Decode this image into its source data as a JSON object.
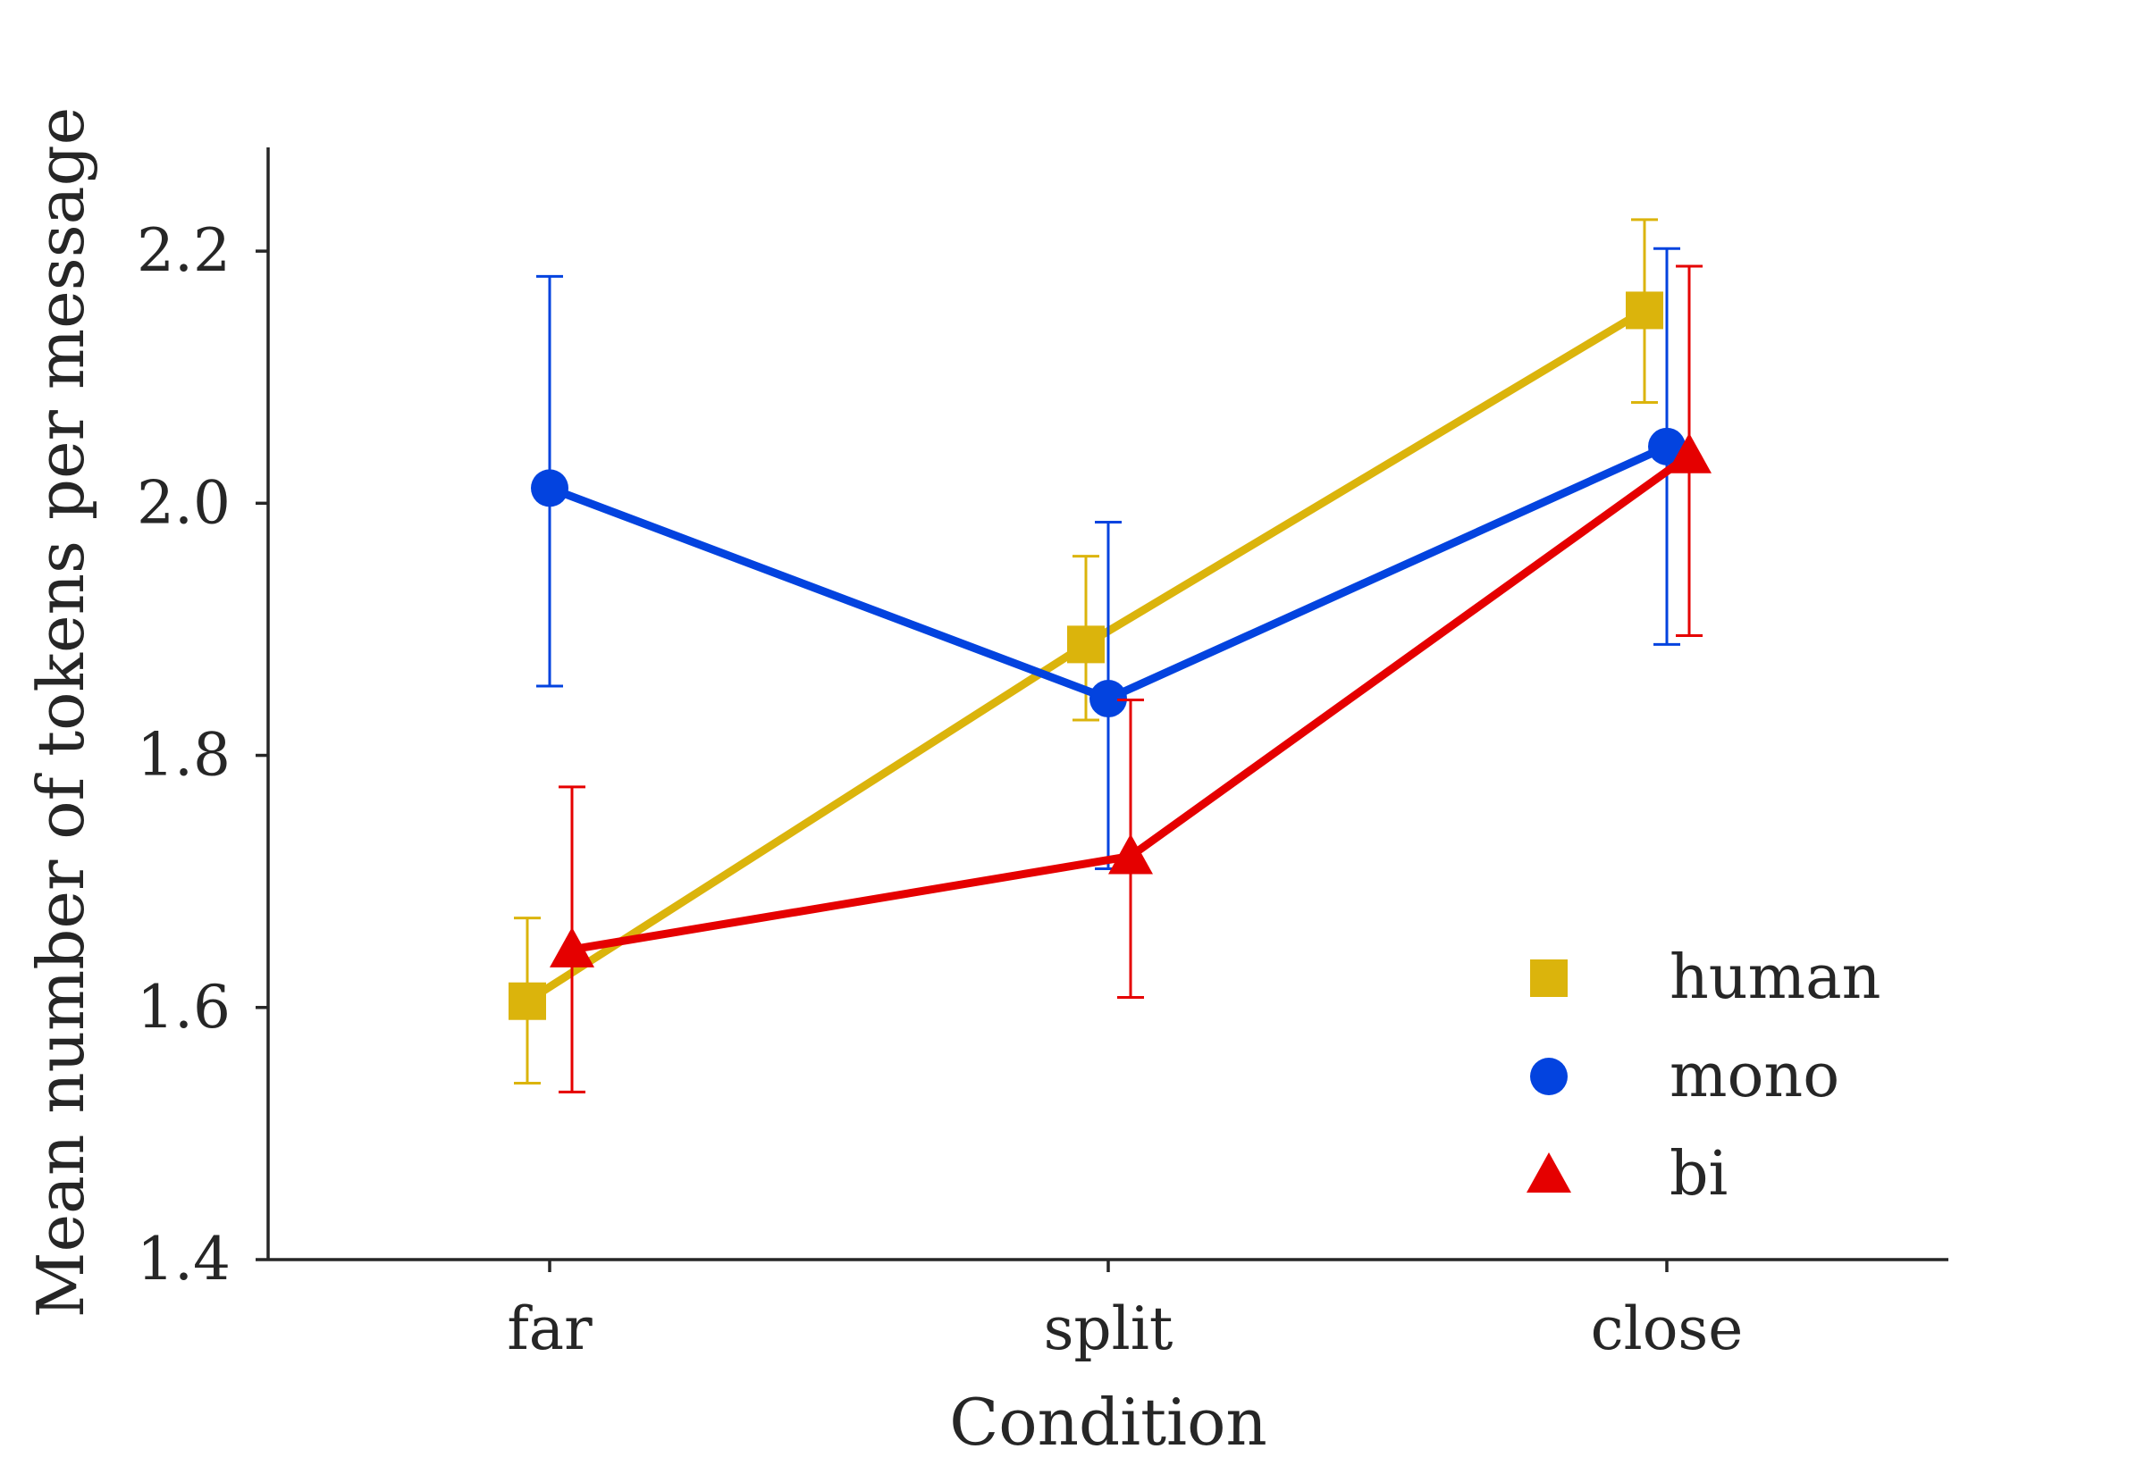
{
  "chart_data": {
    "type": "line",
    "xlabel": "Condition",
    "ylabel": "Mean number of tokens per message",
    "categories": [
      "far",
      "split",
      "close"
    ],
    "ylim": [
      1.4,
      2.3
    ],
    "yticks": [
      "1.4",
      "1.6",
      "1.8",
      "2.0",
      "2.2"
    ],
    "grid": false,
    "legend_position": "bottom-right",
    "series": [
      {
        "name": "human",
        "color": "#DBB40C",
        "marker": "square",
        "values": [
          1.605,
          1.888,
          2.153
        ],
        "ci_low": [
          1.54,
          1.828,
          2.08
        ],
        "ci_high": [
          1.671,
          1.958,
          2.225
        ]
      },
      {
        "name": "mono",
        "color": "#0343DF",
        "marker": "circle",
        "values": [
          2.012,
          1.845,
          2.045
        ],
        "ci_low": [
          1.855,
          1.71,
          1.888
        ],
        "ci_high": [
          2.18,
          1.985,
          2.202
        ]
      },
      {
        "name": "bi",
        "color": "#E50000",
        "marker": "triangle",
        "values": [
          1.646,
          1.72,
          2.038
        ],
        "ci_low": [
          1.533,
          1.608,
          1.895
        ],
        "ci_high": [
          1.775,
          1.844,
          2.188
        ]
      }
    ]
  }
}
